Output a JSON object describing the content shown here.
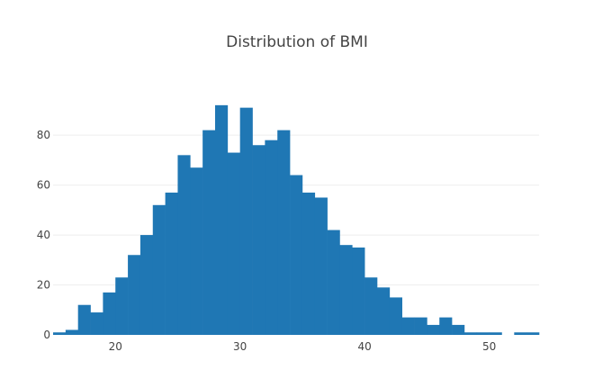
{
  "chart_data": {
    "type": "bar",
    "title": "Distribution of BMI",
    "xlabel": "",
    "ylabel": "",
    "bin_start": 15,
    "bin_width": 1,
    "values": [
      1,
      2,
      12,
      9,
      17,
      23,
      32,
      40,
      52,
      57,
      72,
      67,
      82,
      92,
      73,
      91,
      76,
      78,
      82,
      64,
      57,
      55,
      42,
      36,
      35,
      23,
      19,
      15,
      7,
      7,
      4,
      7,
      4,
      1,
      1,
      1,
      0,
      1,
      1
    ],
    "xlim": [
      15,
      54
    ],
    "ylim": [
      0,
      97
    ],
    "x_ticks": [
      20,
      30,
      40,
      50
    ],
    "y_ticks": [
      0,
      20,
      40,
      60,
      80
    ],
    "bar_color": "#1f77b4",
    "grid": true
  }
}
